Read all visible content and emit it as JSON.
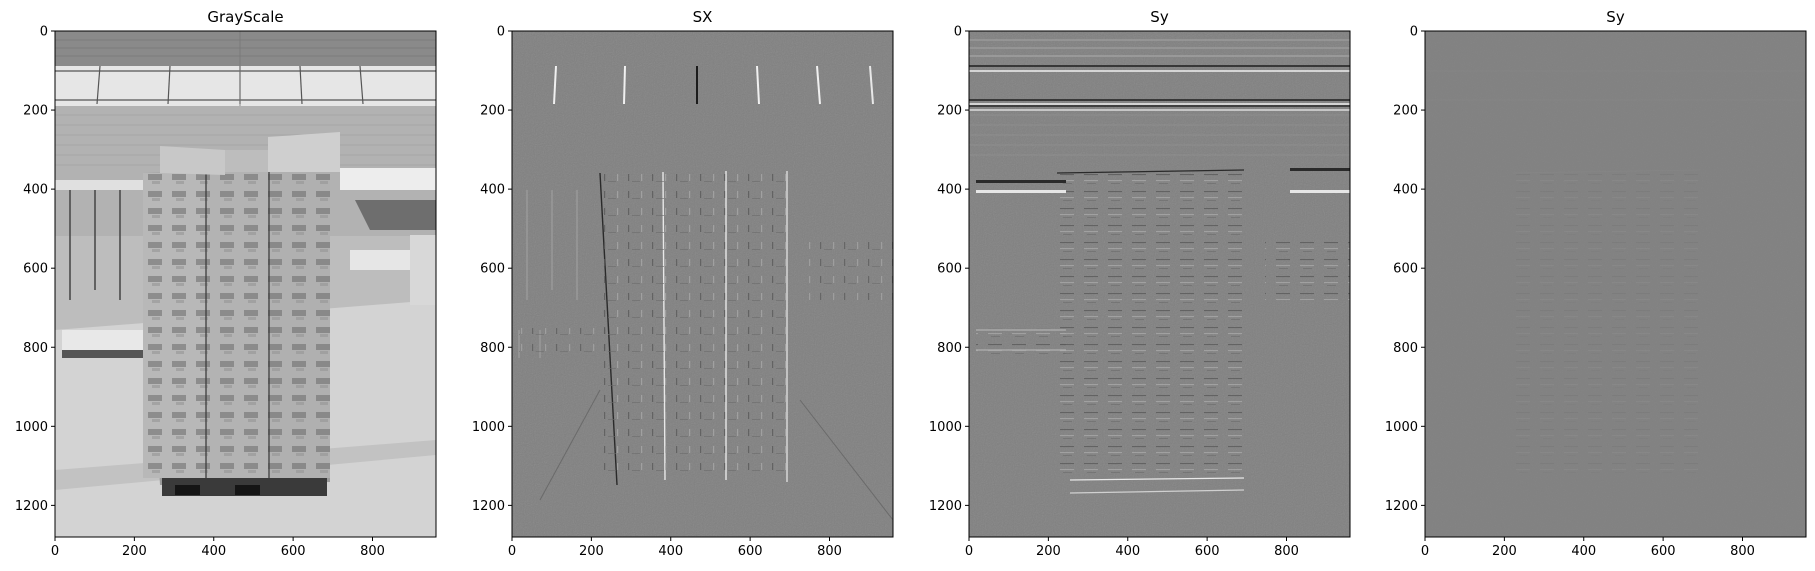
{
  "figure": {
    "panels": [
      {
        "title": "GrayScale",
        "kind": "photo"
      },
      {
        "title": "SX",
        "kind": "sobel-x"
      },
      {
        "title": "Sy",
        "kind": "sobel-y"
      },
      {
        "title": "Sy",
        "kind": "magnitude-faint"
      }
    ],
    "axes": {
      "x_ticks": [
        "0",
        "200",
        "400",
        "600",
        "800"
      ],
      "y_ticks": [
        "0",
        "200",
        "400",
        "600",
        "800",
        "1000",
        "1200"
      ]
    },
    "colors": {
      "background": "#ffffff",
      "axis": "#000000",
      "edge_mid_gray": "#808080"
    }
  }
}
